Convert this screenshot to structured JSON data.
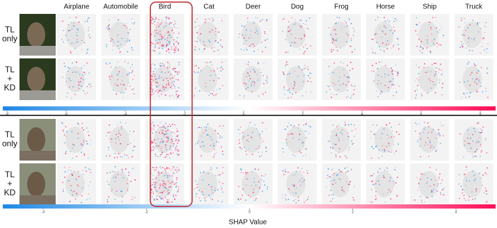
{
  "columns": [
    "Airplane",
    "Automobile",
    "Bird",
    "Cat",
    "Deer",
    "Dog",
    "Frog",
    "Horse",
    "Ship",
    "Truck"
  ],
  "sections": [
    {
      "rows": [
        {
          "label": [
            "TL",
            "only"
          ]
        },
        {
          "label": [
            "TL",
            "+",
            "KD"
          ]
        }
      ],
      "colorbar_ticks": [
        -8,
        -6,
        -4,
        -2,
        0,
        2,
        4,
        6,
        8
      ]
    },
    {
      "rows": [
        {
          "label": [
            "TL",
            "only"
          ]
        },
        {
          "label": [
            "TL",
            "+",
            "KD"
          ]
        }
      ],
      "colorbar_ticks": [
        -4,
        -2,
        0,
        2,
        4
      ]
    }
  ],
  "colorbar_label": "SHAP Value"
}
